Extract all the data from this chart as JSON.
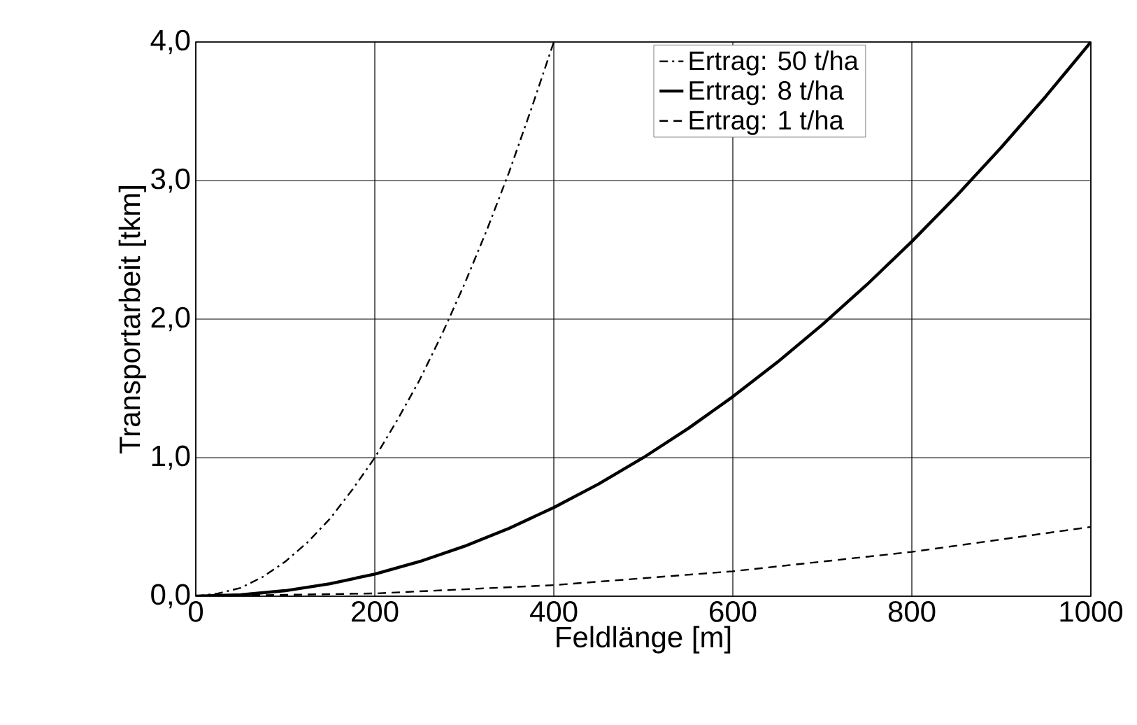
{
  "chart_data": {
    "type": "line",
    "xlabel": "Feldlänge [m]",
    "ylabel": "Transportarbeit [tkm]",
    "xlim": [
      0,
      1000
    ],
    "xticks": [
      0,
      200,
      400,
      600,
      800,
      1000
    ],
    "ylim": [
      0,
      4
    ],
    "yticks": [
      {
        "value": 0,
        "label": "0,0"
      },
      {
        "value": 1,
        "label": "1,0"
      },
      {
        "value": 2,
        "label": "2,0"
      },
      {
        "value": 3,
        "label": "3,0"
      },
      {
        "value": 4,
        "label": "4,0"
      }
    ],
    "grid": true,
    "legend": "top",
    "marker": "none",
    "series": [
      {
        "name": "Ertrag: 50 t/ha",
        "color": "#000000",
        "line_style": "dashdot",
        "x": [
          0,
          25,
          50,
          75,
          100,
          125,
          150,
          175,
          200,
          225,
          250,
          275,
          300,
          325,
          350,
          375,
          400
        ],
        "values": [
          0,
          0.02,
          0.06,
          0.14,
          0.25,
          0.39,
          0.56,
          0.77,
          1.0,
          1.27,
          1.56,
          1.89,
          2.25,
          2.64,
          3.06,
          3.52,
          4.0
        ]
      },
      {
        "name": "Ertrag: 8 t/ha",
        "color": "#000000",
        "line_style": "solid",
        "x": [
          0,
          50,
          100,
          150,
          200,
          250,
          300,
          350,
          400,
          450,
          500,
          550,
          600,
          650,
          700,
          750,
          800,
          850,
          900,
          950,
          1000
        ],
        "values": [
          0,
          0.01,
          0.04,
          0.09,
          0.16,
          0.25,
          0.36,
          0.49,
          0.64,
          0.81,
          1.0,
          1.21,
          1.44,
          1.69,
          1.96,
          2.25,
          2.56,
          2.89,
          3.24,
          3.61,
          4.0
        ]
      },
      {
        "name": "Ertrag: 1 t/ha",
        "color": "#000000",
        "line_style": "dashed",
        "x": [
          0,
          100,
          200,
          300,
          400,
          500,
          600,
          700,
          800,
          900,
          1000
        ],
        "values": [
          0,
          0.01,
          0.02,
          0.05,
          0.08,
          0.13,
          0.18,
          0.25,
          0.32,
          0.41,
          0.5
        ]
      }
    ]
  }
}
